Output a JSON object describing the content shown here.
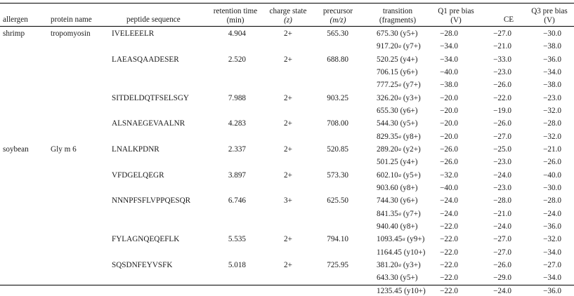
{
  "headers": {
    "allergen": "allergen",
    "protein": "protein name",
    "peptide": "peptide sequence",
    "rt_1": "retention time",
    "rt_2": "(min)",
    "charge_1": "charge state",
    "charge_2": "(z)",
    "prec_1": "precursor",
    "prec_2": "(m/z)",
    "trans_1": "transition",
    "trans_2": "(fragments)",
    "q1_1": "Q1 pre bias",
    "q1_2": "(V)",
    "ce": "CE",
    "q3_1": "Q3 pre bias",
    "q3_2": "(V)"
  },
  "rows": [
    {
      "allergen": "shrimp",
      "protein": "tropomyosin",
      "peptide": "IVELEEELR",
      "rt": "4.904",
      "charge": "2+",
      "precursor": "565.30",
      "mz": "675.30",
      "mark": "",
      "frag": "(y5+)",
      "q1": "−28.0",
      "ce": "−27.0",
      "q3": "−30.0"
    },
    {
      "allergen": "",
      "protein": "",
      "peptide": "",
      "rt": "",
      "charge": "",
      "precursor": "",
      "mz": "917.20",
      "mark": "a",
      "frag": "(y7+)",
      "q1": "−34.0",
      "ce": "−21.0",
      "q3": "−38.0"
    },
    {
      "allergen": "",
      "protein": "",
      "peptide": "LAEASQAADESER",
      "rt": "2.520",
      "charge": "2+",
      "precursor": "688.80",
      "mz": "520.25",
      "mark": "",
      "frag": "(y4+)",
      "q1": "−34.0",
      "ce": "−33.0",
      "q3": "−36.0"
    },
    {
      "allergen": "",
      "protein": "",
      "peptide": "",
      "rt": "",
      "charge": "",
      "precursor": "",
      "mz": "706.15",
      "mark": "",
      "frag": "(y6+)",
      "q1": "−40.0",
      "ce": "−23.0",
      "q3": "−34.0"
    },
    {
      "allergen": "",
      "protein": "",
      "peptide": "",
      "rt": "",
      "charge": "",
      "precursor": "",
      "mz": "777.25",
      "mark": "a",
      "frag": "(y7+)",
      "q1": "−38.0",
      "ce": "−26.0",
      "q3": "−38.0"
    },
    {
      "allergen": "",
      "protein": "",
      "peptide": "SITDELDQTFSELSGY",
      "rt": "7.988",
      "charge": "2+",
      "precursor": "903.25",
      "mz": "326.20",
      "mark": "a",
      "frag": "(y3+)",
      "q1": "−20.0",
      "ce": "−22.0",
      "q3": "−23.0"
    },
    {
      "allergen": "",
      "protein": "",
      "peptide": "",
      "rt": "",
      "charge": "",
      "precursor": "",
      "mz": "655.30",
      "mark": "",
      "frag": "(y6+)",
      "q1": "−20.0",
      "ce": "−19.0",
      "q3": "−32.0"
    },
    {
      "allergen": "",
      "protein": "",
      "peptide": "ALSNAEGEVAALNR",
      "rt": "4.283",
      "charge": "2+",
      "precursor": "708.00",
      "mz": "544.30",
      "mark": "",
      "frag": "(y5+)",
      "q1": "−20.0",
      "ce": "−26.0",
      "q3": "−28.0"
    },
    {
      "allergen": "",
      "protein": "",
      "peptide": "",
      "rt": "",
      "charge": "",
      "precursor": "",
      "mz": "829.35",
      "mark": "a",
      "frag": "(y8+)",
      "q1": "−20.0",
      "ce": "−27.0",
      "q3": "−32.0"
    },
    {
      "allergen": "soybean",
      "protein": "Gly m 6",
      "peptide": "LNALKPDNR",
      "rt": "2.337",
      "charge": "2+",
      "precursor": "520.85",
      "mz": "289.20",
      "mark": "a",
      "frag": "(y2+)",
      "q1": "−26.0",
      "ce": "−25.0",
      "q3": "−21.0"
    },
    {
      "allergen": "",
      "protein": "",
      "peptide": "",
      "rt": "",
      "charge": "",
      "precursor": "",
      "mz": "501.25",
      "mark": "",
      "frag": "(y4+)",
      "q1": "−26.0",
      "ce": "−23.0",
      "q3": "−26.0"
    },
    {
      "allergen": "",
      "protein": "",
      "peptide": "VFDGELQEGR",
      "rt": "3.897",
      "charge": "2+",
      "precursor": "573.30",
      "mz": "602.10",
      "mark": "a",
      "frag": "(y5+)",
      "q1": "−32.0",
      "ce": "−24.0",
      "q3": "−40.0"
    },
    {
      "allergen": "",
      "protein": "",
      "peptide": "",
      "rt": "",
      "charge": "",
      "precursor": "",
      "mz": "903.60",
      "mark": "",
      "frag": "(y8+)",
      "q1": "−40.0",
      "ce": "−23.0",
      "q3": "−30.0"
    },
    {
      "allergen": "",
      "protein": "",
      "peptide": "NNNPFSFLVPPQESQR",
      "rt": "6.746",
      "charge": "3+",
      "precursor": "625.50",
      "mz": "744.30",
      "mark": "",
      "frag": "(y6+)",
      "q1": "−24.0",
      "ce": "−28.0",
      "q3": "−28.0"
    },
    {
      "allergen": "",
      "protein": "",
      "peptide": "",
      "rt": "",
      "charge": "",
      "precursor": "",
      "mz": "841.35",
      "mark": "a",
      "frag": "(y7+)",
      "q1": "−24.0",
      "ce": "−21.0",
      "q3": "−24.0"
    },
    {
      "allergen": "",
      "protein": "",
      "peptide": "",
      "rt": "",
      "charge": "",
      "precursor": "",
      "mz": "940.40",
      "mark": "",
      "frag": "(y8+)",
      "q1": "−22.0",
      "ce": "−24.0",
      "q3": "−36.0"
    },
    {
      "allergen": "",
      "protein": "",
      "peptide": "FYLAGNQEQEFLK",
      "rt": "5.535",
      "charge": "2+",
      "precursor": "794.10",
      "mz": "1093.45",
      "mark": "a",
      "frag": "(y9+)",
      "q1": "−22.0",
      "ce": "−27.0",
      "q3": "−32.0"
    },
    {
      "allergen": "",
      "protein": "",
      "peptide": "",
      "rt": "",
      "charge": "",
      "precursor": "",
      "mz": "1164.45",
      "mark": "",
      "frag": "(y10+)",
      "q1": "−22.0",
      "ce": "−27.0",
      "q3": "−34.0"
    },
    {
      "allergen": "",
      "protein": "",
      "peptide": "SQSDNFEYVSFK",
      "rt": "5.018",
      "charge": "2+",
      "precursor": "725.95",
      "mz": "381.20",
      "mark": "a",
      "frag": "(y3+)",
      "q1": "−22.0",
      "ce": "−26.0",
      "q3": "−27.0"
    },
    {
      "allergen": "",
      "protein": "",
      "peptide": "",
      "rt": "",
      "charge": "",
      "precursor": "",
      "mz": "643.30",
      "mark": "",
      "frag": "(y5+)",
      "q1": "−22.0",
      "ce": "−29.0",
      "q3": "−34.0"
    },
    {
      "allergen": "",
      "protein": "",
      "peptide": "",
      "rt": "",
      "charge": "",
      "precursor": "",
      "mz": "1235.45",
      "mark": "",
      "frag": "(y10+)",
      "q1": "−22.0",
      "ce": "−24.0",
      "q3": "−36.0"
    }
  ]
}
